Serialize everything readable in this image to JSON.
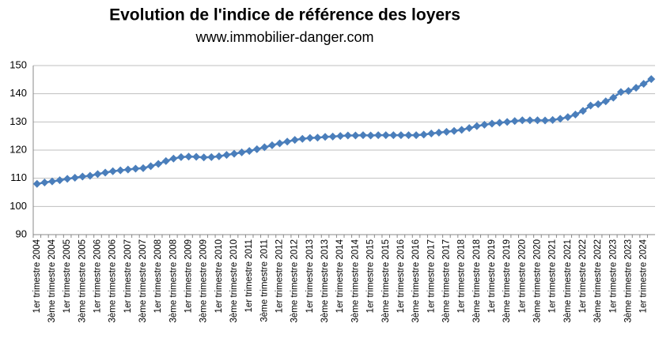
{
  "chart_data": {
    "type": "line",
    "title": "Evolution de l'indice de référence des loyers",
    "subtitle": "www.immobilier-danger.com",
    "categories": [
      "1er trimestre 2004",
      null,
      "3ème trimestre 2004",
      null,
      "1er trimestre 2005",
      null,
      "3ème trimestre 2005",
      null,
      "1er trimestre 2006",
      null,
      "3ème trimestre 2006",
      null,
      "1er trimestre 2007",
      null,
      "3ème trimestre 2007",
      null,
      "1er trimestre 2008",
      null,
      "3ème trimestre 2008",
      null,
      "1er trimestre 2009",
      null,
      "3ème trimestre 2009",
      null,
      "1er trimestre 2010",
      null,
      "3ème trimestre 2010",
      null,
      "1er trimestre 2011",
      null,
      "3ème trimestre 2011",
      null,
      "1er trimestre 2012",
      null,
      "3ème trimestre 2012",
      null,
      "1er trimestre 2013",
      null,
      "3ème trimestre 2013",
      null,
      "1er trimestre 2014",
      null,
      "3ème trimestre 2014",
      null,
      "1er trimestre 2015",
      null,
      "3ème trimestre 2015",
      null,
      "1er trimestre 2016",
      null,
      "3ème trimestre 2016",
      null,
      "1er trimestre 2017",
      null,
      "3ème trimestre 2017",
      null,
      "1er trimestre 2018",
      null,
      "3ème trimestre 2018",
      null,
      "1er trimestre 2019",
      null,
      "3ème trimestre 2019",
      null,
      "1er trimestre 2020",
      null,
      "3ème trimestre 2020",
      null,
      "1er trimestre 2021",
      null,
      "3ème trimestre 2021",
      null,
      "1er trimestre 2022",
      null,
      "3ème trimestre 2022",
      null,
      "1er trimestre 2023",
      null,
      "3ème trimestre 2023",
      null,
      "1er trimestre 2024",
      null
    ],
    "series": [
      {
        "color": "#4a7ebb",
        "values": [
          108.0,
          108.5,
          108.9,
          109.3,
          109.8,
          110.2,
          110.6,
          110.9,
          111.5,
          112.0,
          112.5,
          112.8,
          113.1,
          113.4,
          113.6,
          114.3,
          115.1,
          116.1,
          117.0,
          117.5,
          117.7,
          117.6,
          117.4,
          117.5,
          117.8,
          118.3,
          118.7,
          119.2,
          119.7,
          120.3,
          121.0,
          121.7,
          122.4,
          123.0,
          123.6,
          124.0,
          124.3,
          124.4,
          124.7,
          124.8,
          125.0,
          125.2,
          125.2,
          125.3,
          125.2,
          125.3,
          125.3,
          125.3,
          125.3,
          125.3,
          125.3,
          125.5,
          125.9,
          126.2,
          126.5,
          126.8,
          127.2,
          127.8,
          128.5,
          129.0,
          129.4,
          129.7,
          130.0,
          130.3,
          130.6,
          130.6,
          130.6,
          130.5,
          130.7,
          131.1,
          131.7,
          132.6,
          133.9,
          135.8,
          136.3,
          137.3,
          138.6,
          140.6,
          141.0,
          142.1,
          143.5,
          145.2
        ]
      }
    ],
    "ylim": [
      90,
      150
    ],
    "yticks": [
      90,
      100,
      110,
      120,
      130,
      140,
      150
    ],
    "grid": true
  }
}
